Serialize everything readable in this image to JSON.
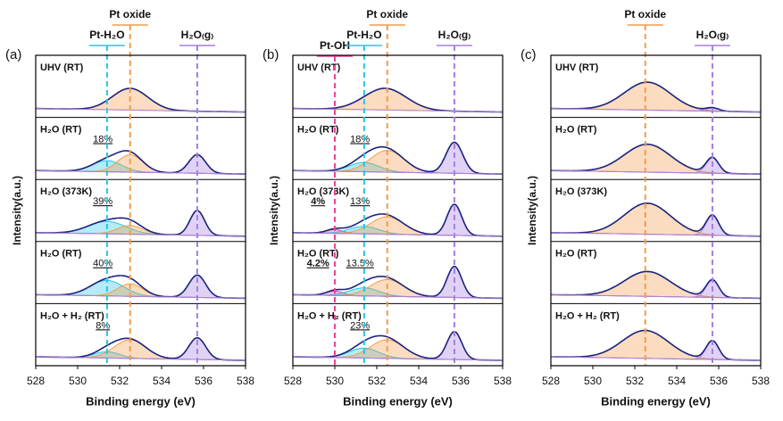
{
  "chart_data": [
    {
      "type": "xps",
      "panel_label": "(a)",
      "xlabel": "Binding energy (eV)",
      "ylabel": "Intensity(a.u.)",
      "xlim": [
        528,
        538
      ],
      "xticks": [
        528,
        530,
        532,
        534,
        536,
        538
      ],
      "reference_lines": [
        {
          "label": "Pt-H₂O",
          "x": 531.4,
          "color": "#29c5e6"
        },
        {
          "label": "Pt oxide",
          "x": 532.5,
          "color": "#f39c4a"
        },
        {
          "label": "H₂O₍g₎",
          "x": 535.7,
          "color": "#a57fe0"
        }
      ],
      "rows": [
        {
          "label": "UHV (RT)",
          "components": [
            {
              "center": 532.5,
              "height": 0.35,
              "width": 0.85,
              "color": "#f39c4a"
            }
          ]
        },
        {
          "label": "H₂O (RT)",
          "annotation": {
            "text": "18%",
            "color": "#29c5e6"
          },
          "components": [
            {
              "center": 531.4,
              "height": 0.18,
              "width": 0.7,
              "color": "#29c5e6"
            },
            {
              "center": 532.5,
              "height": 0.28,
              "width": 0.6,
              "color": "#f39c4a"
            },
            {
              "center": 535.7,
              "height": 0.3,
              "width": 0.4,
              "color": "#a57fe0"
            }
          ]
        },
        {
          "label": "H₂O (373K)",
          "annotation": {
            "text": "39%",
            "color": "#29c5e6"
          },
          "components": [
            {
              "center": 531.4,
              "height": 0.2,
              "width": 0.9,
              "color": "#29c5e6"
            },
            {
              "center": 532.5,
              "height": 0.14,
              "width": 0.6,
              "color": "#f39c4a"
            },
            {
              "center": 535.7,
              "height": 0.4,
              "width": 0.35,
              "color": "#a57fe0"
            }
          ]
        },
        {
          "label": "H₂O (RT)",
          "annotation": {
            "text": "40%",
            "color": "#29c5e6"
          },
          "components": [
            {
              "center": 531.4,
              "height": 0.25,
              "width": 0.8,
              "color": "#29c5e6"
            },
            {
              "center": 532.5,
              "height": 0.2,
              "width": 0.6,
              "color": "#f39c4a"
            },
            {
              "center": 535.7,
              "height": 0.36,
              "width": 0.4,
              "color": "#a57fe0"
            }
          ]
        },
        {
          "label": "H₂O + H₂ (RT)",
          "annotation": {
            "text": "8%",
            "color": "#29c5e6"
          },
          "components": [
            {
              "center": 531.4,
              "height": 0.1,
              "width": 0.6,
              "color": "#29c5e6"
            },
            {
              "center": 532.5,
              "height": 0.3,
              "width": 0.75,
              "color": "#f39c4a"
            },
            {
              "center": 535.7,
              "height": 0.35,
              "width": 0.4,
              "color": "#a57fe0"
            }
          ]
        }
      ]
    },
    {
      "type": "xps",
      "panel_label": "(b)",
      "xlabel": "Binding energy (eV)",
      "ylabel": "Intensity(a.u.)",
      "xlim": [
        528,
        538
      ],
      "xticks": [
        528,
        530,
        532,
        534,
        536,
        538
      ],
      "reference_lines": [
        {
          "label": "Pt-OH",
          "x": 530.0,
          "color": "#e8459a"
        },
        {
          "label": "Pt-H₂O",
          "x": 531.4,
          "color": "#29c5e6"
        },
        {
          "label": "Pt oxide",
          "x": 532.5,
          "color": "#f39c4a"
        },
        {
          "label": "H₂O₍g₎",
          "x": 535.7,
          "color": "#a57fe0"
        }
      ],
      "rows": [
        {
          "label": "UHV (RT)",
          "components": [
            {
              "center": 532.4,
              "height": 0.35,
              "width": 1.0,
              "color": "#f39c4a"
            }
          ]
        },
        {
          "label": "H₂O (RT)",
          "annotation": {
            "text": "18%",
            "color": "#29c5e6"
          },
          "components": [
            {
              "center": 531.4,
              "height": 0.15,
              "width": 0.7,
              "color": "#29c5e6"
            },
            {
              "center": 532.5,
              "height": 0.35,
              "width": 0.8,
              "color": "#f39c4a"
            },
            {
              "center": 535.7,
              "height": 0.5,
              "width": 0.4,
              "color": "#a57fe0"
            }
          ]
        },
        {
          "label": "H₂O (373K)",
          "annotation": {
            "text": "13%",
            "color": "#29c5e6"
          },
          "annotation2": {
            "text": "4%",
            "color": "#e8459a"
          },
          "components": [
            {
              "center": 530.0,
              "height": 0.06,
              "width": 0.4,
              "color": "#e8459a"
            },
            {
              "center": 531.4,
              "height": 0.12,
              "width": 0.7,
              "color": "#29c5e6"
            },
            {
              "center": 532.5,
              "height": 0.28,
              "width": 0.8,
              "color": "#f39c4a"
            },
            {
              "center": 535.7,
              "height": 0.5,
              "width": 0.35,
              "color": "#a57fe0"
            }
          ]
        },
        {
          "label": "H₂O (RT)",
          "annotation": {
            "text": "13.5%",
            "color": "#29c5e6"
          },
          "annotation2": {
            "text": "4.2%",
            "color": "#e8459a"
          },
          "components": [
            {
              "center": 530.0,
              "height": 0.07,
              "width": 0.4,
              "color": "#e8459a"
            },
            {
              "center": 531.4,
              "height": 0.13,
              "width": 0.7,
              "color": "#29c5e6"
            },
            {
              "center": 532.5,
              "height": 0.27,
              "width": 0.8,
              "color": "#f39c4a"
            },
            {
              "center": 535.7,
              "height": 0.5,
              "width": 0.35,
              "color": "#a57fe0"
            }
          ]
        },
        {
          "label": "H₂O + H₂ (RT)",
          "annotation": {
            "text": "23%",
            "color": "#29c5e6"
          },
          "components": [
            {
              "center": 531.4,
              "height": 0.16,
              "width": 0.7,
              "color": "#29c5e6"
            },
            {
              "center": 532.5,
              "height": 0.3,
              "width": 0.8,
              "color": "#f39c4a"
            },
            {
              "center": 535.7,
              "height": 0.45,
              "width": 0.35,
              "color": "#a57fe0"
            }
          ]
        }
      ]
    },
    {
      "type": "xps",
      "panel_label": "(c)",
      "xlabel": "Binding energy (eV)",
      "ylabel": "Intensity(a.u.)",
      "xlim": [
        528,
        538
      ],
      "xticks": [
        528,
        530,
        532,
        534,
        536,
        538
      ],
      "reference_lines": [
        {
          "label": "Pt oxide",
          "x": 532.5,
          "color": "#f39c4a"
        },
        {
          "label": "H₂O₍g₎",
          "x": 535.7,
          "color": "#a57fe0"
        }
      ],
      "rows": [
        {
          "label": "UHV (RT)",
          "components": [
            {
              "center": 532.6,
              "height": 0.45,
              "width": 1.1,
              "color": "#f39c4a"
            },
            {
              "center": 535.7,
              "height": 0.05,
              "width": 0.3,
              "color": "#a57fe0"
            }
          ]
        },
        {
          "label": "H₂O (RT)",
          "components": [
            {
              "center": 532.6,
              "height": 0.45,
              "width": 1.1,
              "color": "#f39c4a"
            },
            {
              "center": 535.7,
              "height": 0.25,
              "width": 0.3,
              "color": "#a57fe0"
            }
          ]
        },
        {
          "label": "H₂O (373K)",
          "components": [
            {
              "center": 532.6,
              "height": 0.5,
              "width": 1.1,
              "color": "#f39c4a"
            },
            {
              "center": 535.7,
              "height": 0.32,
              "width": 0.3,
              "color": "#a57fe0"
            }
          ]
        },
        {
          "label": "H₂O (RT)",
          "components": [
            {
              "center": 532.6,
              "height": 0.4,
              "width": 1.1,
              "color": "#f39c4a"
            },
            {
              "center": 535.7,
              "height": 0.28,
              "width": 0.3,
              "color": "#a57fe0"
            }
          ]
        },
        {
          "label": "H₂O + H₂ (RT)",
          "components": [
            {
              "center": 532.5,
              "height": 0.45,
              "width": 1.1,
              "color": "#f39c4a"
            },
            {
              "center": 535.7,
              "height": 0.3,
              "width": 0.3,
              "color": "#a57fe0"
            }
          ]
        }
      ]
    }
  ]
}
